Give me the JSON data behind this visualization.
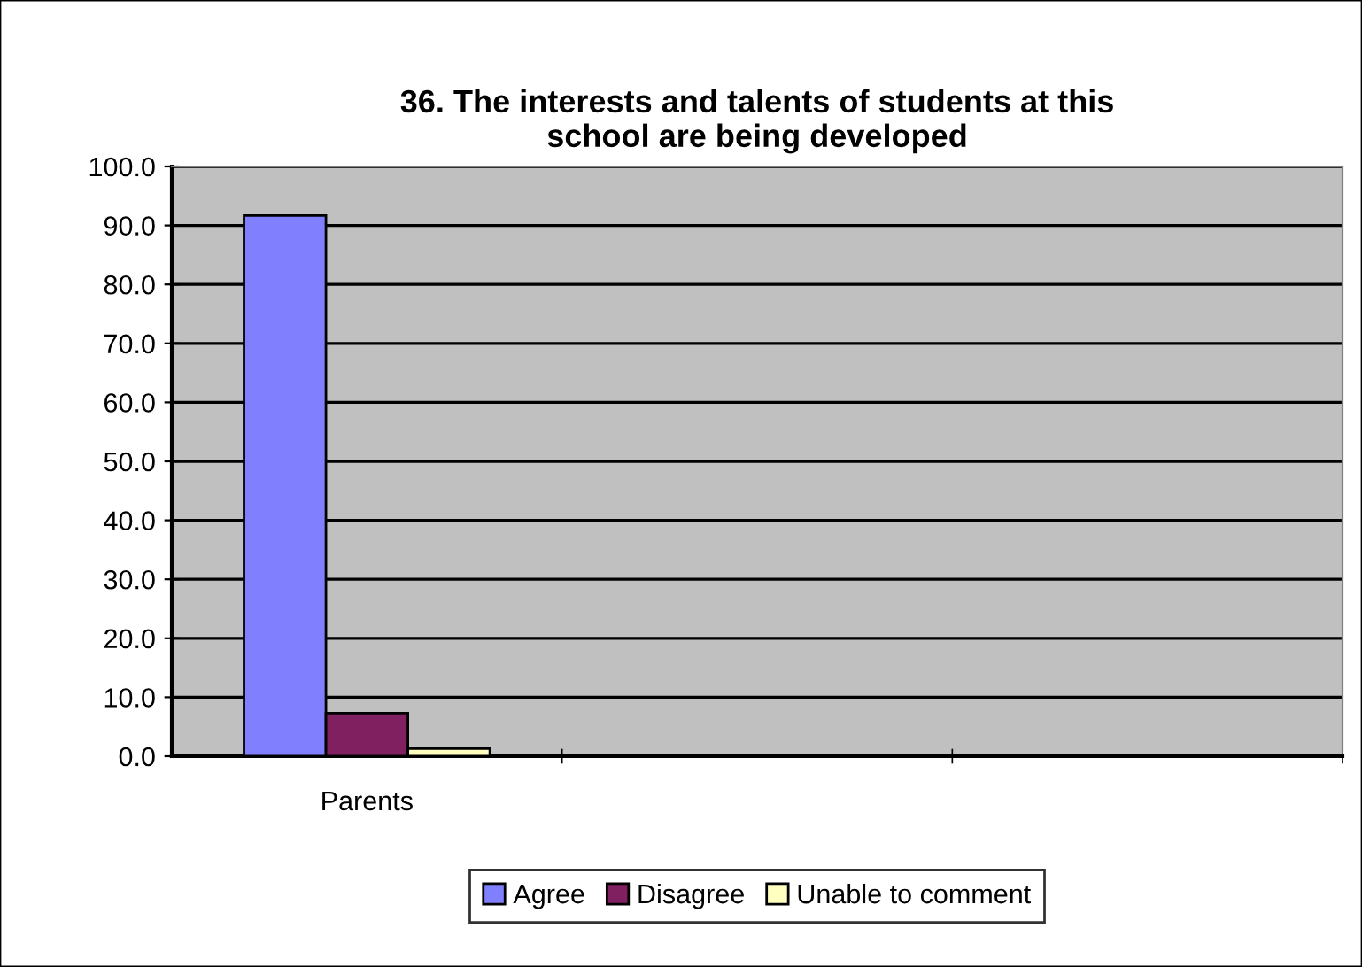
{
  "chart_data": {
    "type": "bar",
    "title": "36. The interests and talents of students at this\nschool are being developed",
    "categories": [
      "Parents",
      null,
      null
    ],
    "series": [
      {
        "name": "Agree",
        "color": "#8080ff",
        "values": [
          91.7,
          null,
          null
        ]
      },
      {
        "name": "Disagree",
        "color": "#802060",
        "values": [
          7.3,
          null,
          null
        ]
      },
      {
        "name": "Unable to comment",
        "color": "#ffffc0",
        "values": [
          1.3,
          null,
          null
        ]
      }
    ],
    "ylim": [
      0,
      100
    ],
    "yticks": [
      {
        "value": 0,
        "label": "0.0"
      },
      {
        "value": 10,
        "label": "10.0"
      },
      {
        "value": 20,
        "label": "20.0"
      },
      {
        "value": 30,
        "label": "30.0"
      },
      {
        "value": 40,
        "label": "40.0"
      },
      {
        "value": 50,
        "label": "50.0"
      },
      {
        "value": 60,
        "label": "60.0"
      },
      {
        "value": 70,
        "label": "70.0"
      },
      {
        "value": 80,
        "label": "80.0"
      },
      {
        "value": 90,
        "label": "90.0"
      },
      {
        "value": 100,
        "label": "100.0"
      }
    ],
    "grid": "y",
    "legend": "bottom"
  }
}
